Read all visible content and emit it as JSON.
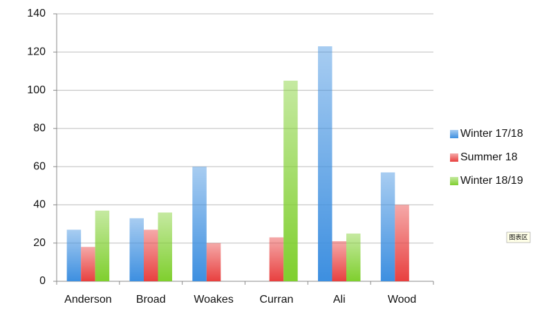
{
  "chart_data": {
    "type": "bar",
    "categories": [
      "Anderson",
      "Broad",
      "Woakes",
      "Curran",
      "Ali",
      "Wood"
    ],
    "series": [
      {
        "name": "Winter 17/18",
        "color": "#3d8fe0",
        "values": [
          27,
          33,
          60,
          null,
          123,
          57
        ]
      },
      {
        "name": "Summer 18",
        "color": "#e8403f",
        "values": [
          18,
          27,
          20,
          23,
          21,
          40
        ]
      },
      {
        "name": "Winter 18/19",
        "color": "#7fcf2e",
        "values": [
          37,
          36,
          null,
          105,
          25,
          null
        ]
      }
    ],
    "ylim": [
      0,
      140
    ],
    "yticks": [
      0,
      20,
      40,
      60,
      80,
      100,
      120,
      140
    ],
    "grid": true,
    "legend": "right",
    "tooltip": "图表区"
  }
}
